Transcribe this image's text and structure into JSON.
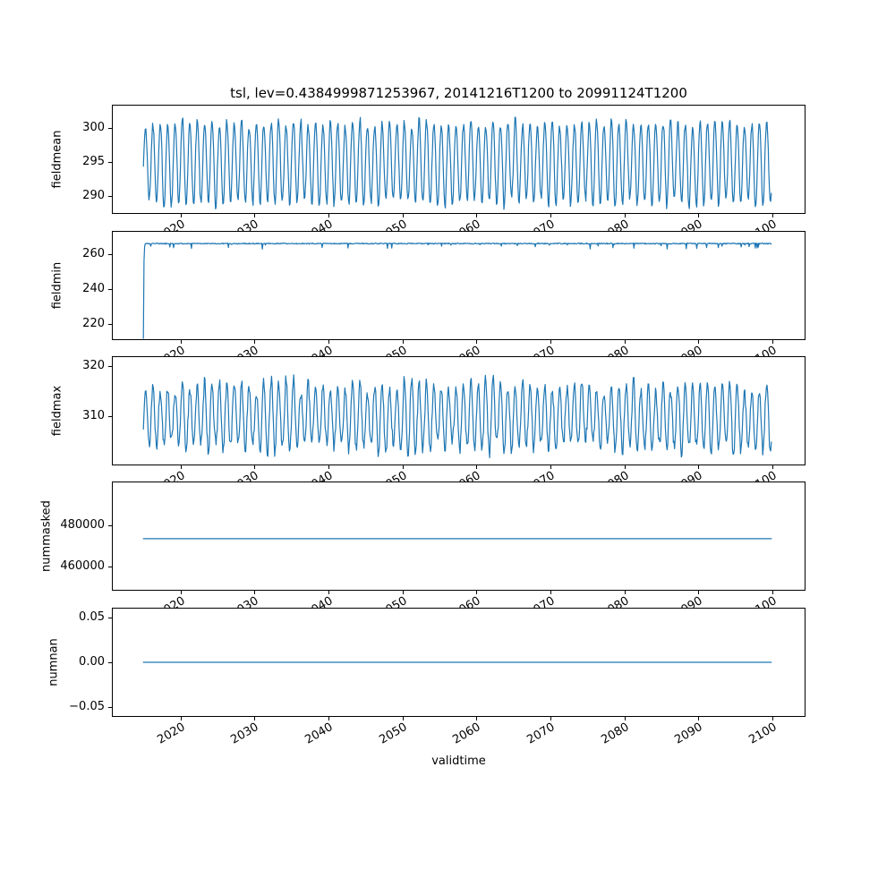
{
  "title": "tsl, lev=0.4384999871253967, 20141216T1200 to 20991124T1200",
  "colors": {
    "line": "#1f77b4",
    "axes": "#000000",
    "background": "#ffffff"
  },
  "x_axis": {
    "label": "validtime",
    "xlim": [
      2010.7,
      2104.5
    ],
    "xticks": [
      2020,
      2030,
      2040,
      2050,
      2060,
      2070,
      2080,
      2090,
      2100
    ],
    "t_start": 2014.96,
    "t_end": 2099.9,
    "samples_per_year": 12
  },
  "chart_data": [
    {
      "type": "line",
      "ylabel": "fieldmean",
      "ylim": [
        287.3,
        303.4
      ],
      "yticks": [
        290,
        295,
        300
      ],
      "ytick_labels": [
        "290",
        "295",
        "300"
      ],
      "series_summary": "monthly seasonal oscillation 2015-2100, peaks ~300-302, troughs ~288-292",
      "generator": {
        "kind": "seasonal",
        "mean": 295.2,
        "amp_pos": 5.5,
        "amp_neg": 6.3,
        "amp_jitter": 0.12,
        "noise": 0.55,
        "seed": 7
      }
    },
    {
      "type": "line",
      "ylabel": "fieldmin",
      "ylim": [
        210.5,
        273.5
      ],
      "yticks": [
        220,
        240,
        260
      ],
      "ytick_labels": [
        "220",
        "240",
        "260"
      ],
      "series_summary": "starts near 211 then jumps to ~266 and stays flat with sporadic small dips to ~262",
      "generator": {
        "kind": "flat-with-dips",
        "value": 266.2,
        "noise": 0.3,
        "dip_prob": 0.06,
        "dip_max": 3.5,
        "start_values": [
          211.5,
          256.0,
          264.5
        ],
        "seed": 21
      }
    },
    {
      "type": "line",
      "ylabel": "fieldmax",
      "ylim": [
        300.3,
        321.9
      ],
      "yticks": [
        310,
        320
      ],
      "ytick_labels": [
        "310",
        "320"
      ],
      "series_summary": "monthly seasonal oscillation, peaks ~314-320, troughs ~302-305",
      "generator": {
        "kind": "seasonal",
        "mean": 309.8,
        "amp_pos": 6.2,
        "amp_neg": 6.0,
        "amp_jitter": 0.25,
        "noise": 1.1,
        "seed": 13
      }
    },
    {
      "type": "line",
      "ylabel": "nummasked",
      "ylim": [
        448000,
        501500
      ],
      "yticks": [
        460000,
        480000
      ],
      "ytick_labels": [
        "460000",
        "480000"
      ],
      "series_summary": "constant ~473500 over the whole period",
      "generator": {
        "kind": "constant",
        "value": 473500
      }
    },
    {
      "type": "line",
      "ylabel": "numnan",
      "ylim": [
        -0.0607,
        0.0607
      ],
      "yticks": [
        -0.05,
        0,
        0.05
      ],
      "ytick_labels": [
        "−0.05",
        "0.00",
        "0.05"
      ],
      "series_summary": "constant 0 over the whole period",
      "generator": {
        "kind": "constant",
        "value": 0
      }
    }
  ]
}
